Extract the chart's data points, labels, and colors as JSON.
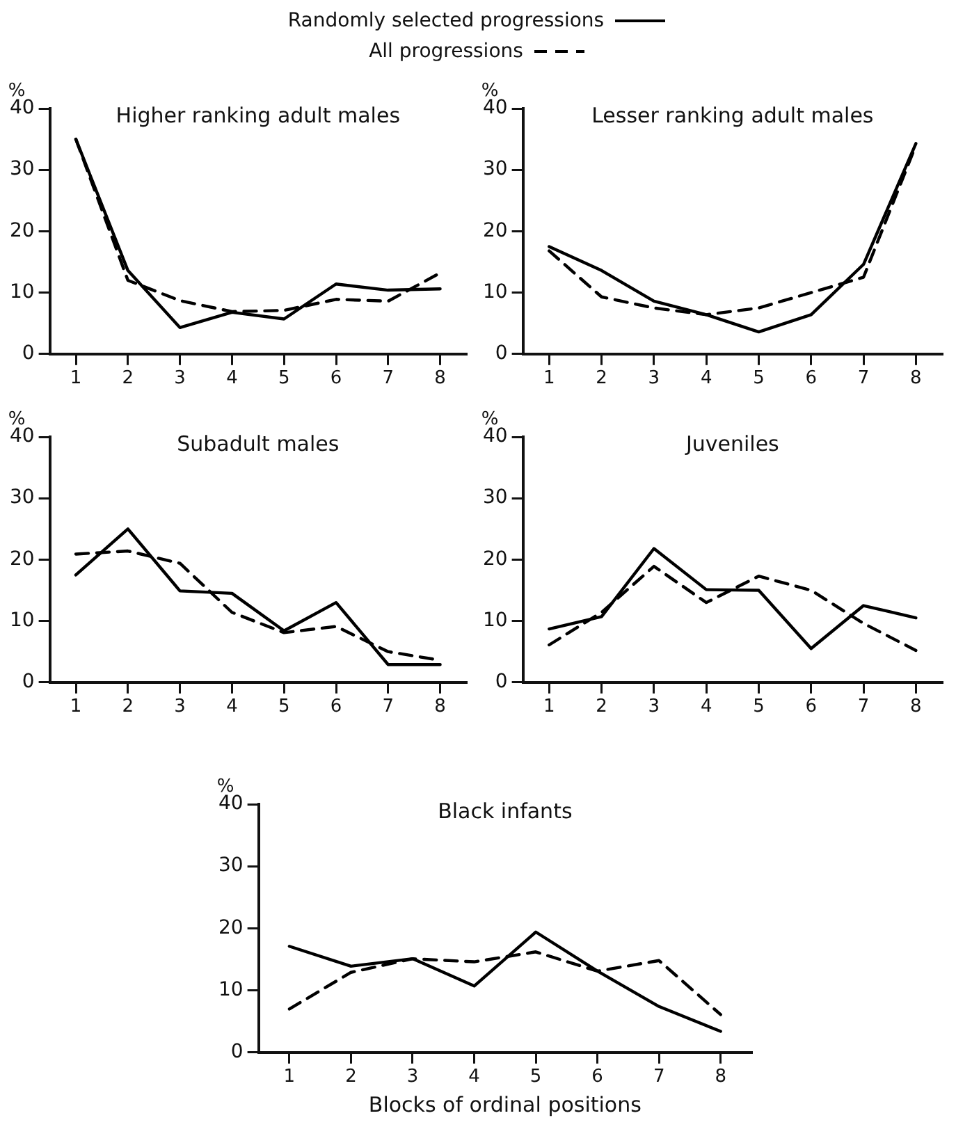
{
  "chart_data": [
    {
      "type": "line",
      "title": "Higher ranking adult males",
      "ylabel": "%",
      "categories": [
        "1",
        "2",
        "3",
        "4",
        "5",
        "6",
        "7",
        "8"
      ],
      "ylim": [
        0,
        40
      ],
      "yticks": [
        0,
        10,
        20,
        30,
        40
      ],
      "legend": "top",
      "marker": "none",
      "series": [
        {
          "name": "Randomly selected progressions",
          "color": "#000000",
          "line_style": "solid",
          "values": [
            35,
            13.6,
            4.3,
            6.8,
            5.7,
            11.4,
            10.4,
            10.6
          ]
        },
        {
          "name": "All progressions",
          "color": "#000000",
          "line_style": "dashed",
          "values": [
            35,
            12,
            8.7,
            6.9,
            7.1,
            8.9,
            8.6,
            13.2
          ]
        }
      ]
    },
    {
      "type": "line",
      "title": "Lesser ranking adult males",
      "ylabel": "%",
      "categories": [
        "1",
        "2",
        "3",
        "4",
        "5",
        "6",
        "7",
        "8"
      ],
      "ylim": [
        0,
        40
      ],
      "yticks": [
        0,
        10,
        20,
        30,
        40
      ],
      "marker": "none",
      "series": [
        {
          "color": "#000000",
          "line_style": "solid",
          "values": [
            17.5,
            13.6,
            8.6,
            6.4,
            3.6,
            6.4,
            14.6,
            34.3
          ]
        },
        {
          "color": "#000000",
          "line_style": "dashed",
          "values": [
            16.8,
            9.3,
            7.5,
            6.4,
            7.5,
            10,
            12.5,
            34
          ]
        }
      ]
    },
    {
      "type": "line",
      "title": "Subadult males",
      "ylabel": "%",
      "categories": [
        "1",
        "2",
        "3",
        "4",
        "5",
        "6",
        "7",
        "8"
      ],
      "ylim": [
        0,
        40
      ],
      "yticks": [
        0,
        10,
        20,
        30,
        40
      ],
      "marker": "none",
      "series": [
        {
          "color": "#000000",
          "line_style": "solid",
          "values": [
            17.5,
            25,
            14.9,
            14.5,
            8.4,
            13,
            2.9,
            2.9
          ]
        },
        {
          "color": "#000000",
          "line_style": "dashed",
          "values": [
            20.9,
            21.4,
            19.4,
            11.4,
            8.1,
            9.1,
            5,
            3.6
          ]
        }
      ]
    },
    {
      "type": "line",
      "title": "Juveniles",
      "ylabel": "%",
      "categories": [
        "1",
        "2",
        "3",
        "4",
        "5",
        "6",
        "7",
        "8"
      ],
      "ylim": [
        0,
        40
      ],
      "yticks": [
        0,
        10,
        20,
        30,
        40
      ],
      "marker": "none",
      "series": [
        {
          "color": "#000000",
          "line_style": "solid",
          "values": [
            8.7,
            10.7,
            21.8,
            15.1,
            15,
            5.5,
            12.5,
            10.5
          ]
        },
        {
          "color": "#000000",
          "line_style": "dashed",
          "values": [
            6.1,
            11.4,
            18.9,
            13,
            17.3,
            15,
            9.6,
            5.2
          ]
        }
      ]
    },
    {
      "type": "line",
      "title": "Black infants",
      "ylabel": "%",
      "xlabel": "Blocks of ordinal positions",
      "categories": [
        "1",
        "2",
        "3",
        "4",
        "5",
        "6",
        "7",
        "8"
      ],
      "ylim": [
        0,
        40
      ],
      "yticks": [
        0,
        10,
        20,
        30,
        40
      ],
      "marker": "none",
      "series": [
        {
          "color": "#000000",
          "line_style": "solid",
          "values": [
            17.1,
            13.9,
            15.1,
            10.7,
            19.4,
            13.1,
            7.4,
            3.4
          ]
        },
        {
          "color": "#000000",
          "line_style": "dashed",
          "values": [
            7,
            12.9,
            15.1,
            14.6,
            16.2,
            13.1,
            14.8,
            6.1
          ]
        }
      ]
    }
  ]
}
